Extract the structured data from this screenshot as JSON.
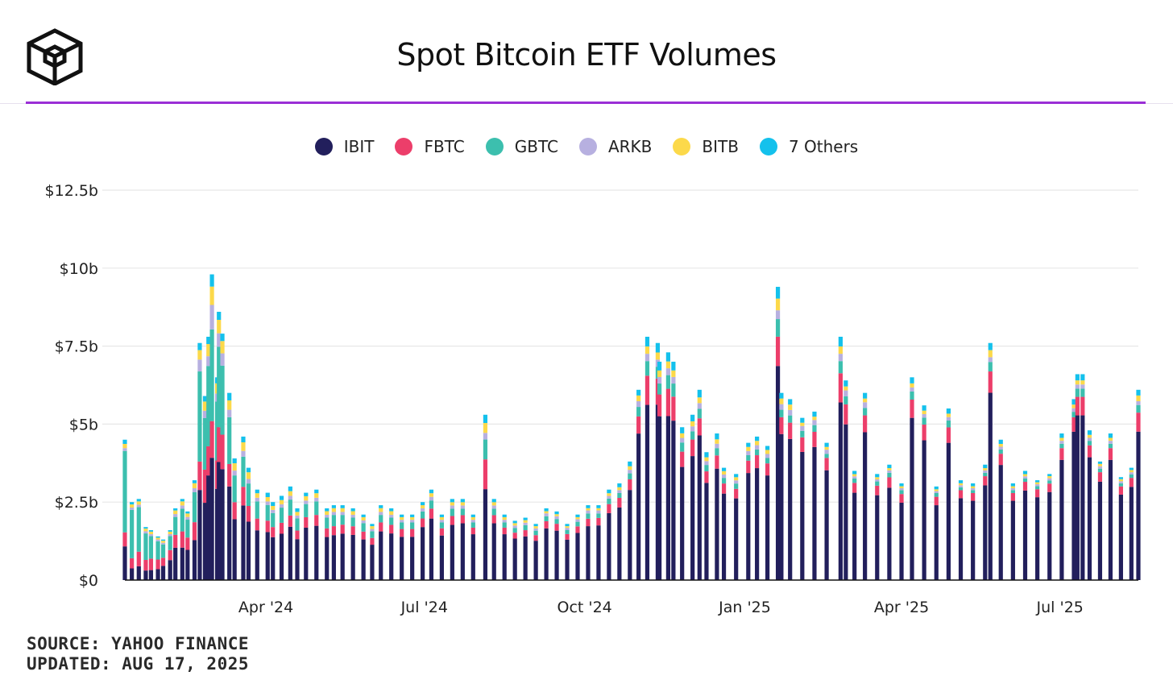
{
  "header": {
    "title": "Spot Bitcoin ETF Volumes",
    "logo_icon": "cube-logo-icon",
    "accent_color": "#9b2fd6"
  },
  "footer": {
    "source": "SOURCE: YAHOO FINANCE",
    "updated": "UPDATED: AUG 17, 2025"
  },
  "chart_data": {
    "type": "bar",
    "stacked": true,
    "title": "Spot Bitcoin ETF Volumes",
    "xlabel": "",
    "ylabel": "",
    "ylim": [
      0,
      12.5
    ],
    "y_unit": "billions USD",
    "y_ticks": [
      {
        "value": 0,
        "label": "$0"
      },
      {
        "value": 2.5,
        "label": "$2.5b"
      },
      {
        "value": 5,
        "label": "$5b"
      },
      {
        "value": 7.5,
        "label": "$7.5b"
      },
      {
        "value": 10,
        "label": "$10b"
      },
      {
        "value": 12.5,
        "label": "$12.5b"
      }
    ],
    "x_range": [
      "2024-01-11",
      "2025-08-15"
    ],
    "x_ticks": [
      {
        "date": "2024-04-01",
        "label": "Apr '24"
      },
      {
        "date": "2024-07-01",
        "label": "Jul '24"
      },
      {
        "date": "2024-10-01",
        "label": "Oct '24"
      },
      {
        "date": "2025-01-01",
        "label": "Jan '25"
      },
      {
        "date": "2025-04-01",
        "label": "Apr '25"
      },
      {
        "date": "2025-07-01",
        "label": "Jul '25"
      }
    ],
    "grid": true,
    "legend_position": "top-center",
    "series": [
      {
        "name": "IBIT",
        "color": "#221f5c"
      },
      {
        "name": "FBTC",
        "color": "#ec3e6a"
      },
      {
        "name": "GBTC",
        "color": "#3cbfae"
      },
      {
        "name": "ARKB",
        "color": "#b7b0e0"
      },
      {
        "name": "BITB",
        "color": "#fcd94a"
      },
      {
        "name": "7 Others",
        "color": "#14c1ec"
      }
    ],
    "x": [
      "2024-01-11",
      "2024-01-15",
      "2024-01-19",
      "2024-01-23",
      "2024-01-26",
      "2024-01-30",
      "2024-02-02",
      "2024-02-06",
      "2024-02-09",
      "2024-02-13",
      "2024-02-16",
      "2024-02-20",
      "2024-02-23",
      "2024-02-26",
      "2024-02-28",
      "2024-03-01",
      "2024-03-04",
      "2024-03-05",
      "2024-03-07",
      "2024-03-11",
      "2024-03-14",
      "2024-03-19",
      "2024-03-22",
      "2024-03-27",
      "2024-04-02",
      "2024-04-05",
      "2024-04-10",
      "2024-04-15",
      "2024-04-19",
      "2024-04-24",
      "2024-04-30",
      "2024-05-06",
      "2024-05-10",
      "2024-05-15",
      "2024-05-21",
      "2024-05-27",
      "2024-06-01",
      "2024-06-06",
      "2024-06-12",
      "2024-06-18",
      "2024-06-24",
      "2024-06-30",
      "2024-07-05",
      "2024-07-11",
      "2024-07-17",
      "2024-07-23",
      "2024-07-29",
      "2024-08-05",
      "2024-08-10",
      "2024-08-16",
      "2024-08-22",
      "2024-08-28",
      "2024-09-03",
      "2024-09-09",
      "2024-09-15",
      "2024-09-21",
      "2024-09-27",
      "2024-10-03",
      "2024-10-09",
      "2024-10-15",
      "2024-10-21",
      "2024-10-27",
      "2024-11-01",
      "2024-11-06",
      "2024-11-12",
      "2024-11-13",
      "2024-11-18",
      "2024-11-21",
      "2024-11-26",
      "2024-12-02",
      "2024-12-06",
      "2024-12-10",
      "2024-12-16",
      "2024-12-20",
      "2024-12-27",
      "2025-01-03",
      "2025-01-08",
      "2025-01-14",
      "2025-01-20",
      "2025-01-22",
      "2025-01-27",
      "2025-02-03",
      "2025-02-10",
      "2025-02-17",
      "2025-02-25",
      "2025-02-28",
      "2025-03-05",
      "2025-03-11",
      "2025-03-18",
      "2025-03-25",
      "2025-04-01",
      "2025-04-07",
      "2025-04-14",
      "2025-04-21",
      "2025-04-28",
      "2025-05-05",
      "2025-05-12",
      "2025-05-19",
      "2025-05-22",
      "2025-05-28",
      "2025-06-04",
      "2025-06-11",
      "2025-06-18",
      "2025-06-25",
      "2025-07-02",
      "2025-07-09",
      "2025-07-11",
      "2025-07-14",
      "2025-07-18",
      "2025-07-24",
      "2025-07-30",
      "2025-08-05",
      "2025-08-11",
      "2025-08-15"
    ],
    "totals": [
      4.5,
      2.5,
      2.6,
      1.7,
      1.6,
      1.4,
      1.3,
      1.6,
      2.3,
      2.6,
      2.2,
      3.2,
      7.6,
      5.9,
      7.8,
      9.8,
      6.5,
      8.6,
      7.9,
      6.0,
      3.9,
      4.6,
      3.6,
      2.9,
      2.8,
      2.5,
      2.7,
      3.0,
      2.3,
      2.8,
      2.9,
      2.3,
      2.4,
      2.4,
      2.3,
      2.1,
      1.8,
      2.4,
      2.3,
      2.1,
      2.1,
      2.5,
      2.9,
      2.1,
      2.6,
      2.6,
      2.1,
      5.3,
      2.6,
      2.1,
      1.9,
      2.0,
      1.8,
      2.3,
      2.2,
      1.8,
      2.1,
      2.4,
      2.4,
      2.9,
      3.1,
      3.8,
      6.1,
      7.8,
      7.6,
      7.0,
      7.3,
      7.0,
      4.9,
      5.3,
      6.1,
      4.1,
      4.7,
      3.6,
      3.4,
      4.4,
      4.6,
      4.3,
      9.4,
      6.0,
      5.8,
      5.2,
      5.4,
      4.4,
      7.8,
      6.4,
      3.5,
      6.0,
      3.4,
      3.7,
      3.1,
      6.5,
      5.6,
      3.0,
      5.5,
      3.2,
      3.1,
      3.7,
      7.6,
      4.5,
      3.1,
      3.5,
      3.2,
      3.4,
      4.7,
      5.8,
      6.6,
      6.6,
      4.8,
      3.8,
      4.7,
      3.3,
      3.6,
      6.1
    ],
    "shares": {
      "IBIT": [
        0.24,
        0.15,
        0.17,
        0.18,
        0.2,
        0.25,
        0.35,
        0.4,
        0.45,
        0.4,
        0.44,
        0.4,
        0.38,
        0.42,
        0.43,
        0.4,
        0.45,
        0.44,
        0.45,
        0.5,
        0.5,
        0.52,
        0.52,
        0.55,
        0.55,
        0.55,
        0.55,
        0.57,
        0.57,
        0.6,
        0.6,
        0.6,
        0.6,
        0.62,
        0.63,
        0.62,
        0.63,
        0.65,
        0.65,
        0.66,
        0.66,
        0.68,
        0.68,
        0.68,
        0.68,
        0.7,
        0.7,
        0.55,
        0.7,
        0.7,
        0.7,
        0.7,
        0.7,
        0.72,
        0.72,
        0.72,
        0.72,
        0.72,
        0.73,
        0.74,
        0.75,
        0.76,
        0.77,
        0.72,
        0.74,
        0.75,
        0.72,
        0.73,
        0.74,
        0.75,
        0.76,
        0.76,
        0.76,
        0.77,
        0.77,
        0.78,
        0.78,
        0.78,
        0.73,
        0.78,
        0.78,
        0.79,
        0.79,
        0.8,
        0.73,
        0.78,
        0.8,
        0.79,
        0.8,
        0.8,
        0.8,
        0.8,
        0.8,
        0.8,
        0.8,
        0.82,
        0.82,
        0.82,
        0.79,
        0.82,
        0.82,
        0.82,
        0.83,
        0.83,
        0.82,
        0.82,
        0.8,
        0.8,
        0.82,
        0.83,
        0.82,
        0.83,
        0.83,
        0.78
      ],
      "FBTC": [
        0.1,
        0.13,
        0.18,
        0.2,
        0.23,
        0.22,
        0.2,
        0.2,
        0.18,
        0.2,
        0.18,
        0.18,
        0.12,
        0.18,
        0.12,
        0.12,
        0.14,
        0.13,
        0.14,
        0.12,
        0.14,
        0.13,
        0.14,
        0.13,
        0.13,
        0.13,
        0.13,
        0.12,
        0.12,
        0.12,
        0.12,
        0.12,
        0.12,
        0.12,
        0.12,
        0.12,
        0.12,
        0.12,
        0.12,
        0.12,
        0.12,
        0.11,
        0.11,
        0.11,
        0.11,
        0.1,
        0.1,
        0.18,
        0.1,
        0.1,
        0.1,
        0.1,
        0.1,
        0.1,
        0.1,
        0.1,
        0.1,
        0.1,
        0.1,
        0.1,
        0.1,
        0.09,
        0.09,
        0.12,
        0.11,
        0.1,
        0.12,
        0.11,
        0.1,
        0.1,
        0.09,
        0.09,
        0.09,
        0.09,
        0.09,
        0.09,
        0.09,
        0.09,
        0.1,
        0.09,
        0.09,
        0.09,
        0.09,
        0.09,
        0.12,
        0.1,
        0.09,
        0.09,
        0.09,
        0.09,
        0.09,
        0.09,
        0.09,
        0.09,
        0.09,
        0.08,
        0.08,
        0.08,
        0.09,
        0.08,
        0.08,
        0.08,
        0.08,
        0.08,
        0.08,
        0.08,
        0.09,
        0.09,
        0.08,
        0.08,
        0.08,
        0.08,
        0.08,
        0.1
      ],
      "GBTC": [
        0.58,
        0.62,
        0.55,
        0.5,
        0.45,
        0.42,
        0.33,
        0.28,
        0.25,
        0.28,
        0.26,
        0.3,
        0.38,
        0.28,
        0.33,
        0.3,
        0.29,
        0.3,
        0.28,
        0.25,
        0.22,
        0.21,
        0.2,
        0.19,
        0.18,
        0.18,
        0.18,
        0.17,
        0.17,
        0.15,
        0.15,
        0.15,
        0.15,
        0.13,
        0.12,
        0.13,
        0.12,
        0.1,
        0.1,
        0.1,
        0.1,
        0.09,
        0.09,
        0.09,
        0.09,
        0.08,
        0.08,
        0.12,
        0.08,
        0.08,
        0.08,
        0.08,
        0.08,
        0.07,
        0.07,
        0.07,
        0.07,
        0.07,
        0.06,
        0.06,
        0.05,
        0.05,
        0.05,
        0.06,
        0.05,
        0.05,
        0.06,
        0.06,
        0.06,
        0.05,
        0.05,
        0.05,
        0.05,
        0.05,
        0.05,
        0.04,
        0.04,
        0.04,
        0.06,
        0.04,
        0.04,
        0.04,
        0.04,
        0.03,
        0.05,
        0.04,
        0.04,
        0.04,
        0.04,
        0.04,
        0.04,
        0.04,
        0.04,
        0.04,
        0.04,
        0.03,
        0.03,
        0.03,
        0.04,
        0.03,
        0.03,
        0.03,
        0.03,
        0.03,
        0.03,
        0.03,
        0.04,
        0.04,
        0.03,
        0.03,
        0.03,
        0.03,
        0.03,
        0.04
      ],
      "ARKB": [
        0.02,
        0.03,
        0.03,
        0.04,
        0.04,
        0.04,
        0.04,
        0.04,
        0.04,
        0.04,
        0.04,
        0.04,
        0.05,
        0.04,
        0.04,
        0.08,
        0.04,
        0.05,
        0.05,
        0.04,
        0.04,
        0.04,
        0.04,
        0.04,
        0.04,
        0.04,
        0.04,
        0.04,
        0.04,
        0.04,
        0.04,
        0.04,
        0.04,
        0.04,
        0.04,
        0.04,
        0.04,
        0.04,
        0.04,
        0.04,
        0.04,
        0.04,
        0.04,
        0.04,
        0.04,
        0.04,
        0.04,
        0.04,
        0.04,
        0.04,
        0.04,
        0.04,
        0.04,
        0.04,
        0.04,
        0.04,
        0.04,
        0.04,
        0.04,
        0.03,
        0.03,
        0.03,
        0.03,
        0.03,
        0.03,
        0.03,
        0.03,
        0.03,
        0.03,
        0.03,
        0.03,
        0.03,
        0.03,
        0.03,
        0.03,
        0.03,
        0.03,
        0.03,
        0.03,
        0.03,
        0.03,
        0.03,
        0.03,
        0.03,
        0.03,
        0.03,
        0.02,
        0.03,
        0.02,
        0.02,
        0.02,
        0.02,
        0.02,
        0.02,
        0.02,
        0.02,
        0.02,
        0.02,
        0.02,
        0.02,
        0.02,
        0.02,
        0.02,
        0.02,
        0.02,
        0.02,
        0.02,
        0.02,
        0.02,
        0.02,
        0.02,
        0.02,
        0.02,
        0.02
      ],
      "BITB": [
        0.03,
        0.04,
        0.04,
        0.05,
        0.05,
        0.04,
        0.05,
        0.05,
        0.05,
        0.05,
        0.05,
        0.05,
        0.04,
        0.05,
        0.05,
        0.06,
        0.05,
        0.05,
        0.05,
        0.05,
        0.06,
        0.06,
        0.06,
        0.05,
        0.05,
        0.05,
        0.05,
        0.05,
        0.05,
        0.05,
        0.05,
        0.05,
        0.05,
        0.05,
        0.05,
        0.05,
        0.05,
        0.05,
        0.05,
        0.04,
        0.04,
        0.04,
        0.04,
        0.04,
        0.04,
        0.04,
        0.04,
        0.06,
        0.04,
        0.04,
        0.04,
        0.04,
        0.04,
        0.03,
        0.03,
        0.03,
        0.03,
        0.03,
        0.03,
        0.03,
        0.03,
        0.03,
        0.03,
        0.03,
        0.03,
        0.03,
        0.03,
        0.03,
        0.03,
        0.03,
        0.03,
        0.03,
        0.03,
        0.03,
        0.03,
        0.03,
        0.03,
        0.03,
        0.04,
        0.03,
        0.03,
        0.02,
        0.02,
        0.02,
        0.03,
        0.02,
        0.02,
        0.02,
        0.02,
        0.02,
        0.02,
        0.02,
        0.02,
        0.02,
        0.02,
        0.02,
        0.02,
        0.02,
        0.03,
        0.02,
        0.02,
        0.02,
        0.02,
        0.02,
        0.02,
        0.02,
        0.02,
        0.02,
        0.02,
        0.02,
        0.02,
        0.02,
        0.02,
        0.03
      ],
      "7 Others": [
        0.03,
        0.03,
        0.03,
        0.03,
        0.03,
        0.03,
        0.03,
        0.03,
        0.03,
        0.03,
        0.03,
        0.03,
        0.03,
        0.03,
        0.03,
        0.04,
        0.03,
        0.03,
        0.03,
        0.04,
        0.04,
        0.04,
        0.04,
        0.04,
        0.05,
        0.05,
        0.05,
        0.05,
        0.05,
        0.04,
        0.04,
        0.04,
        0.04,
        0.04,
        0.04,
        0.04,
        0.04,
        0.04,
        0.04,
        0.04,
        0.04,
        0.04,
        0.04,
        0.04,
        0.04,
        0.04,
        0.04,
        0.05,
        0.04,
        0.04,
        0.04,
        0.04,
        0.04,
        0.04,
        0.04,
        0.04,
        0.04,
        0.04,
        0.04,
        0.04,
        0.04,
        0.04,
        0.03,
        0.04,
        0.04,
        0.04,
        0.04,
        0.04,
        0.04,
        0.04,
        0.04,
        0.04,
        0.04,
        0.03,
        0.03,
        0.03,
        0.03,
        0.03,
        0.04,
        0.03,
        0.03,
        0.03,
        0.03,
        0.03,
        0.04,
        0.03,
        0.03,
        0.03,
        0.03,
        0.03,
        0.03,
        0.03,
        0.03,
        0.03,
        0.03,
        0.03,
        0.03,
        0.03,
        0.03,
        0.03,
        0.03,
        0.03,
        0.02,
        0.02,
        0.03,
        0.03,
        0.03,
        0.03,
        0.03,
        0.02,
        0.03,
        0.02,
        0.02,
        0.03
      ]
    }
  }
}
